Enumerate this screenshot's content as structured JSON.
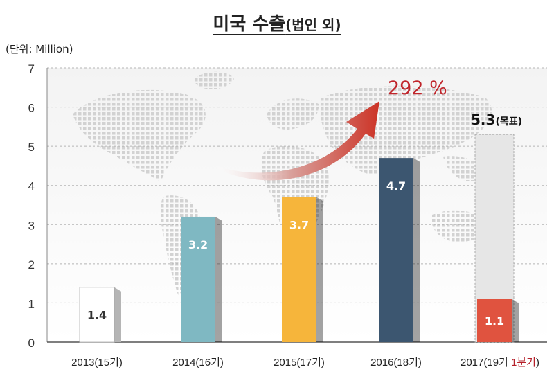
{
  "title": {
    "main": "미국 수출",
    "paren": "(법인 외)"
  },
  "unit_label": "(단위: Million)",
  "growth_label": "292 %",
  "colors": {
    "bar_2013": "#ffffff",
    "bar_2014": "#7fb8c2",
    "bar_2015": "#f6b53b",
    "bar_2016": "#3c5670",
    "bar_2017": "#e0533f",
    "target_fill": "#e6e6e6",
    "growth_text": "#c0252b",
    "red_text": "#b5202a"
  },
  "chart_data": {
    "type": "bar",
    "title": "미국 수출(법인 외)",
    "ylabel": "(단위: Million)",
    "ylim": [
      0,
      7
    ],
    "yticks": [
      0,
      1,
      2,
      3,
      4,
      5,
      6,
      7
    ],
    "grid": true,
    "categories": [
      "2013(15기)",
      "2014(16기)",
      "2015(17기)",
      "2016(18기)",
      "2017(19기 1분기)"
    ],
    "category_parts": [
      {
        "main": "2013(15기)",
        "extra": ""
      },
      {
        "main": "2014(16기)",
        "extra": ""
      },
      {
        "main": "2015(17기)",
        "extra": ""
      },
      {
        "main": "2016(18기)",
        "extra": ""
      },
      {
        "main": "2017(19기 ",
        "extra": "1분기",
        "close": ")"
      }
    ],
    "values": [
      1.4,
      3.2,
      3.7,
      4.7,
      1.1
    ],
    "value_labels": [
      "1.4",
      "3.2",
      "3.7",
      "4.7",
      "1.1"
    ],
    "target": {
      "category": "2017(19기 1분기)",
      "value": 5.3,
      "label_value": "5.3",
      "label_suffix": "(목표)"
    },
    "annotation": "292 %"
  }
}
